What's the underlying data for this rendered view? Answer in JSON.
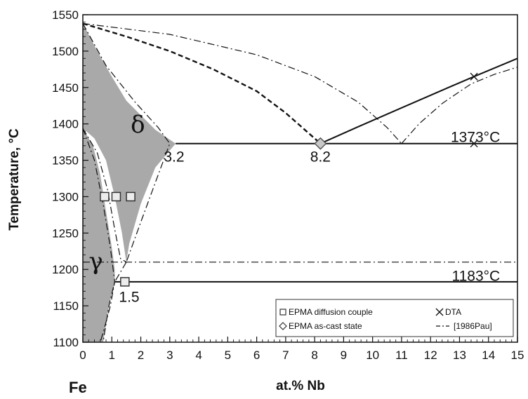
{
  "chart_data": {
    "type": "line",
    "title": "",
    "xlabel": "at.% Nb",
    "ylabel": "Temperature, °C",
    "element_label": "Fe",
    "xlim": [
      0,
      15
    ],
    "ylim": [
      1100,
      1550
    ],
    "x_ticks": [
      0,
      1,
      2,
      3,
      4,
      5,
      6,
      7,
      8,
      9,
      10,
      11,
      12,
      13,
      14,
      15
    ],
    "y_ticks": [
      1100,
      1150,
      1200,
      1250,
      1300,
      1350,
      1400,
      1450,
      1500,
      1550
    ],
    "phase_labels": [
      {
        "text": "δ",
        "x": 1.9,
        "y": 1388
      },
      {
        "text": "γ",
        "x": 0.45,
        "y": 1200
      }
    ],
    "annotations": [
      {
        "text": "3.2",
        "x": 3.15,
        "y": 1356
      },
      {
        "text": "8.2",
        "x": 8.2,
        "y": 1356
      },
      {
        "text": "1.5",
        "x": 1.6,
        "y": 1163
      },
      {
        "text": "1373°C",
        "x": 14.4,
        "y": 1383
      },
      {
        "text": "1183°C",
        "x": 14.4,
        "y": 1192
      }
    ],
    "delta_region": [
      [
        0,
        1538
      ],
      [
        0.5,
        1500
      ],
      [
        1.0,
        1465
      ],
      [
        1.5,
        1432
      ],
      [
        2.0,
        1412
      ],
      [
        2.5,
        1392
      ],
      [
        3.2,
        1373
      ],
      [
        2.5,
        1340
      ],
      [
        2.0,
        1290
      ],
      [
        1.6,
        1235
      ],
      [
        1.5,
        1210
      ],
      [
        1.35,
        1250
      ],
      [
        1.1,
        1300
      ],
      [
        0.8,
        1350
      ],
      [
        0.4,
        1380
      ],
      [
        0,
        1394
      ]
    ],
    "gamma_region": [
      [
        0,
        1394
      ],
      [
        0.35,
        1370
      ],
      [
        0.6,
        1330
      ],
      [
        0.8,
        1280
      ],
      [
        1.0,
        1230
      ],
      [
        1.1,
        1200
      ],
      [
        1.1,
        1183
      ],
      [
        0.9,
        1150
      ],
      [
        0.7,
        1100
      ],
      [
        0,
        1100
      ]
    ],
    "series": [
      {
        "name": "",
        "style": "solid",
        "points": [
          [
            3.2,
            1373
          ],
          [
            15,
            1373
          ]
        ]
      },
      {
        "name": "",
        "style": "solid",
        "points": [
          [
            1.1,
            1183
          ],
          [
            15,
            1183
          ]
        ]
      },
      {
        "name": "",
        "style": "solid",
        "points": [
          [
            8.2,
            1373
          ],
          [
            9.5,
            1396
          ],
          [
            11,
            1422
          ],
          [
            12.5,
            1448
          ],
          [
            13.5,
            1465
          ],
          [
            15,
            1490
          ]
        ]
      },
      {
        "name": "",
        "style": "dashed",
        "points": [
          [
            0,
            1538
          ],
          [
            1.5,
            1520
          ],
          [
            3,
            1500
          ],
          [
            4.5,
            1475
          ],
          [
            6,
            1445
          ],
          [
            7,
            1415
          ],
          [
            8.2,
            1373
          ]
        ]
      },
      {
        "name": "",
        "style": "dashdot",
        "points": [
          [
            0,
            1538
          ],
          [
            3,
            1523
          ],
          [
            6,
            1495
          ],
          [
            8,
            1465
          ],
          [
            9.5,
            1430
          ],
          [
            10.5,
            1395
          ],
          [
            11,
            1373
          ]
        ]
      },
      {
        "name": "",
        "style": "dashdot",
        "points": [
          [
            11,
            1373
          ],
          [
            11.6,
            1400
          ],
          [
            12.4,
            1428
          ],
          [
            13.4,
            1455
          ],
          [
            14.2,
            1468
          ],
          [
            15,
            1478
          ]
        ]
      },
      {
        "name": "",
        "style": "dashdot",
        "points": [
          [
            0,
            1210
          ],
          [
            15,
            1210
          ]
        ]
      },
      {
        "name": "",
        "style": "dashdot",
        "points": [
          [
            0,
            1538
          ],
          [
            0.8,
            1480
          ],
          [
            1.8,
            1430
          ],
          [
            2.6,
            1395
          ],
          [
            3.0,
            1373
          ],
          [
            2.6,
            1330
          ],
          [
            2.0,
            1265
          ],
          [
            1.5,
            1210
          ]
        ]
      },
      {
        "name": "",
        "style": "dashdot",
        "points": [
          [
            0,
            1394
          ],
          [
            0.5,
            1360
          ],
          [
            0.85,
            1310
          ],
          [
            1.1,
            1255
          ],
          [
            1.3,
            1215
          ],
          [
            1.5,
            1210
          ]
        ]
      },
      {
        "name": "",
        "style": "dashdot",
        "points": [
          [
            0,
            1394
          ],
          [
            0.4,
            1350
          ],
          [
            0.7,
            1290
          ],
          [
            0.95,
            1230
          ],
          [
            1.1,
            1183
          ],
          [
            0.95,
            1150
          ],
          [
            0.75,
            1120
          ],
          [
            0.6,
            1100
          ]
        ]
      },
      {
        "name": "",
        "style": "dashdot",
        "points": [
          [
            1.5,
            1210
          ],
          [
            1.1,
            1183
          ],
          [
            0.9,
            1150
          ],
          [
            0.7,
            1100
          ]
        ]
      }
    ],
    "markers": [
      {
        "group": "EPMA diffusion couple",
        "shape": "square",
        "points": [
          [
            0.75,
            1300
          ],
          [
            1.15,
            1300
          ],
          [
            1.65,
            1300
          ],
          [
            1.45,
            1183
          ]
        ]
      },
      {
        "group": "EPMA as-cast state",
        "shape": "diamond",
        "points": [
          [
            8.2,
            1373
          ]
        ]
      },
      {
        "group": "DTA",
        "shape": "x",
        "points": [
          [
            13.5,
            1465
          ],
          [
            13.5,
            1373
          ]
        ]
      }
    ],
    "legend": {
      "placement": "bottom-right",
      "entries": [
        {
          "label": "EPMA diffusion couple",
          "symbol": "square"
        },
        {
          "label": "DTA",
          "symbol": "x"
        },
        {
          "label": "EPMA as-cast state",
          "symbol": "diamond"
        },
        {
          "label": "[1986Pau]",
          "symbol": "dashdot"
        }
      ]
    },
    "grid": false
  }
}
